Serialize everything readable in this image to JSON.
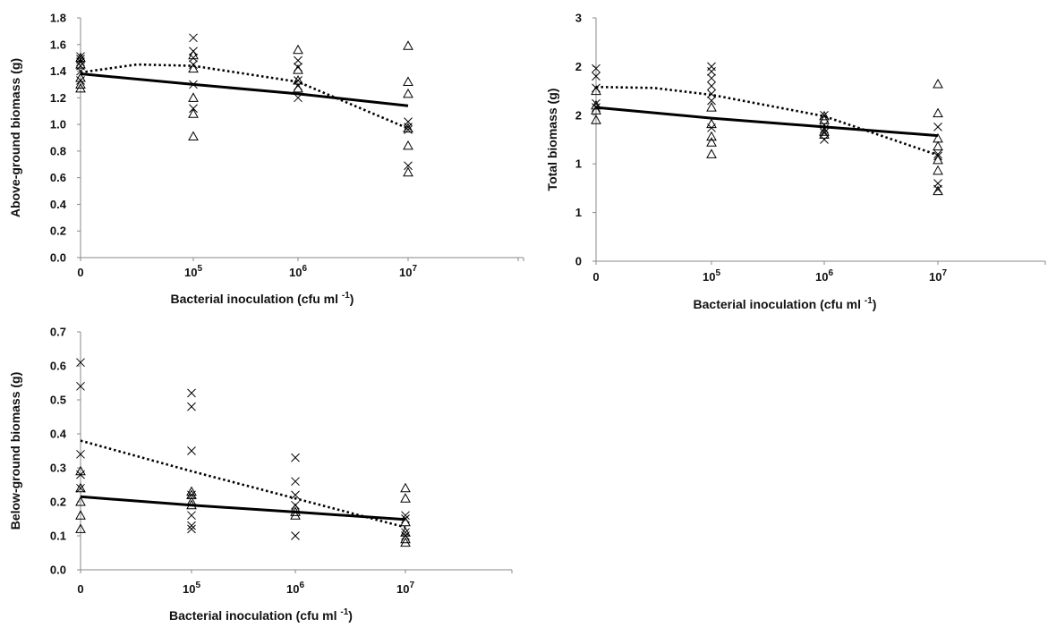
{
  "chart_data": [
    {
      "type": "scatter",
      "panel": "top-left",
      "ylabel": "Above-ground biomass (g)",
      "xlabel_main": "Bacterial inoculation (cfu ml",
      "xlabel_sup": "-1",
      "xlabel_end": ")",
      "ylim": [
        0,
        1.8
      ],
      "yticks": [
        "0.0",
        "0.2",
        "0.4",
        "0.6",
        "0.8",
        "1.0",
        "1.2",
        "1.4",
        "1.6",
        "1.8"
      ],
      "xticks": [
        {
          "base": "0",
          "exp": ""
        },
        {
          "base": "10",
          "exp": "5"
        },
        {
          "base": "10",
          "exp": "6"
        },
        {
          "base": "10",
          "exp": "7"
        }
      ],
      "series": [
        {
          "marker": "x",
          "points": [
            [
              0,
              1.51
            ],
            [
              0,
              1.49
            ],
            [
              0,
              1.47
            ],
            [
              0,
              1.44
            ],
            [
              0,
              1.4
            ],
            [
              0,
              1.33
            ],
            [
              1,
              1.65
            ],
            [
              1,
              1.55
            ],
            [
              1,
              1.5
            ],
            [
              1,
              1.45
            ],
            [
              1,
              1.3
            ],
            [
              1,
              1.12
            ],
            [
              2,
              1.48
            ],
            [
              2,
              1.43
            ],
            [
              2,
              1.33
            ],
            [
              2,
              1.29
            ],
            [
              2,
              1.2
            ],
            [
              3,
              1.02
            ],
            [
              3,
              0.98
            ],
            [
              3,
              0.96
            ],
            [
              3,
              0.69
            ]
          ]
        },
        {
          "marker": "triangle",
          "points": [
            [
              0,
              1.5
            ],
            [
              0,
              1.45
            ],
            [
              0,
              1.35
            ],
            [
              0,
              1.3
            ],
            [
              0,
              1.27
            ],
            [
              1,
              1.52
            ],
            [
              1,
              1.42
            ],
            [
              1,
              1.2
            ],
            [
              1,
              1.08
            ],
            [
              1,
              0.91
            ],
            [
              2,
              1.56
            ],
            [
              2,
              1.41
            ],
            [
              2,
              1.33
            ],
            [
              2,
              1.27
            ],
            [
              3,
              1.59
            ],
            [
              3,
              1.32
            ],
            [
              3,
              1.23
            ],
            [
              3,
              0.97
            ],
            [
              3,
              0.84
            ],
            [
              3,
              0.64
            ]
          ]
        },
        {
          "line": "solid",
          "points": [
            [
              0,
              1.38
            ],
            [
              1,
              1.3
            ],
            [
              2,
              1.23
            ],
            [
              3,
              1.14
            ]
          ]
        },
        {
          "line": "dotted",
          "points": [
            [
              0,
              1.39
            ],
            [
              0.5,
              1.45
            ],
            [
              1,
              1.44
            ],
            [
              2,
              1.32
            ],
            [
              3,
              0.97
            ]
          ]
        }
      ]
    },
    {
      "type": "scatter",
      "panel": "top-right",
      "ylabel": "Total biomass (g)",
      "xlabel_main": "Bacterial inoculation (cfu ml",
      "xlabel_sup": "-1",
      "xlabel_end": ")",
      "ylim": [
        0,
        2.5
      ],
      "yticks": [
        {
          "v": 0,
          "t": "0"
        },
        {
          "v": 0.5,
          "t": "1"
        },
        {
          "v": 1.0,
          "t": "1"
        },
        {
          "v": 1.5,
          "t": "2"
        },
        {
          "v": 2.0,
          "t": "2"
        },
        {
          "v": 2.5,
          "t": "3"
        }
      ],
      "xticks": [
        {
          "base": "0",
          "exp": ""
        },
        {
          "base": "10",
          "exp": "5"
        },
        {
          "base": "10",
          "exp": "6"
        },
        {
          "base": "10",
          "exp": "7"
        }
      ],
      "series": [
        {
          "marker": "x",
          "points": [
            [
              0,
              1.98
            ],
            [
              0,
              1.9
            ],
            [
              0,
              1.78
            ],
            [
              0,
              1.62
            ],
            [
              0,
              1.58
            ],
            [
              1,
              2.0
            ],
            [
              1,
              1.95
            ],
            [
              1,
              1.88
            ],
            [
              1,
              1.8
            ],
            [
              1,
              1.72
            ],
            [
              1,
              1.65
            ],
            [
              1,
              1.37
            ],
            [
              2,
              1.5
            ],
            [
              2,
              1.4
            ],
            [
              2,
              1.36
            ],
            [
              2,
              1.32
            ],
            [
              2,
              1.25
            ],
            [
              3,
              1.38
            ],
            [
              3,
              1.1
            ],
            [
              3,
              1.08
            ],
            [
              3,
              0.8
            ],
            [
              3,
              0.74
            ]
          ]
        },
        {
          "marker": "triangle",
          "points": [
            [
              0,
              1.75
            ],
            [
              0,
              1.6
            ],
            [
              0,
              1.55
            ],
            [
              0,
              1.45
            ],
            [
              1,
              1.58
            ],
            [
              1,
              1.41
            ],
            [
              1,
              1.28
            ],
            [
              1,
              1.22
            ],
            [
              1,
              1.1
            ],
            [
              2,
              1.49
            ],
            [
              2,
              1.45
            ],
            [
              2,
              1.33
            ],
            [
              2,
              1.3
            ],
            [
              3,
              1.82
            ],
            [
              3,
              1.52
            ],
            [
              3,
              1.26
            ],
            [
              3,
              1.18
            ],
            [
              3,
              1.04
            ],
            [
              3,
              0.93
            ],
            [
              3,
              0.72
            ]
          ]
        },
        {
          "line": "solid",
          "points": [
            [
              0,
              1.58
            ],
            [
              1,
              1.47
            ],
            [
              2,
              1.38
            ],
            [
              3,
              1.29
            ]
          ]
        },
        {
          "line": "dotted",
          "points": [
            [
              0,
              1.79
            ],
            [
              0.5,
              1.78
            ],
            [
              1,
              1.71
            ],
            [
              2,
              1.49
            ],
            [
              3,
              1.09
            ]
          ]
        }
      ]
    },
    {
      "type": "scatter",
      "panel": "bottom-left",
      "ylabel": "Below-ground biomass (g)",
      "xlabel_main": "Bacterial inoculation (cfu ml",
      "xlabel_sup": "-1",
      "xlabel_end": ")",
      "ylim": [
        0,
        0.7
      ],
      "yticks": [
        "0.0",
        "0.1",
        "0.2",
        "0.3",
        "0.4",
        "0.5",
        "0.6",
        "0.7"
      ],
      "xticks": [
        {
          "base": "0",
          "exp": ""
        },
        {
          "base": "10",
          "exp": "5"
        },
        {
          "base": "10",
          "exp": "6"
        },
        {
          "base": "10",
          "exp": "7"
        }
      ],
      "series": [
        {
          "marker": "x",
          "points": [
            [
              0,
              0.61
            ],
            [
              0,
              0.54
            ],
            [
              0,
              0.34
            ],
            [
              0,
              0.28
            ],
            [
              0,
              0.24
            ],
            [
              1,
              0.52
            ],
            [
              1,
              0.48
            ],
            [
              1,
              0.35
            ],
            [
              1,
              0.22
            ],
            [
              1,
              0.16
            ],
            [
              1,
              0.13
            ],
            [
              1,
              0.12
            ],
            [
              2,
              0.33
            ],
            [
              2,
              0.26
            ],
            [
              2,
              0.22
            ],
            [
              2,
              0.19
            ],
            [
              2,
              0.1
            ],
            [
              3,
              0.16
            ],
            [
              3,
              0.15
            ],
            [
              3,
              0.11
            ],
            [
              3,
              0.1
            ]
          ]
        },
        {
          "marker": "triangle",
          "points": [
            [
              0,
              0.29
            ],
            [
              0,
              0.24
            ],
            [
              0,
              0.2
            ],
            [
              0,
              0.16
            ],
            [
              0,
              0.12
            ],
            [
              1,
              0.23
            ],
            [
              1,
              0.22
            ],
            [
              1,
              0.2
            ],
            [
              1,
              0.19
            ],
            [
              2,
              0.18
            ],
            [
              2,
              0.17
            ],
            [
              2,
              0.16
            ],
            [
              3,
              0.24
            ],
            [
              3,
              0.21
            ],
            [
              3,
              0.14
            ],
            [
              3,
              0.11
            ],
            [
              3,
              0.09
            ],
            [
              3,
              0.08
            ]
          ]
        },
        {
          "line": "solid",
          "points": [
            [
              0,
              0.215
            ],
            [
              1,
              0.19
            ],
            [
              2,
              0.17
            ],
            [
              3,
              0.148
            ]
          ]
        },
        {
          "line": "dotted",
          "points": [
            [
              0,
              0.38
            ],
            [
              1,
              0.29
            ],
            [
              2,
              0.21
            ],
            [
              3,
              0.125
            ]
          ]
        }
      ]
    }
  ]
}
